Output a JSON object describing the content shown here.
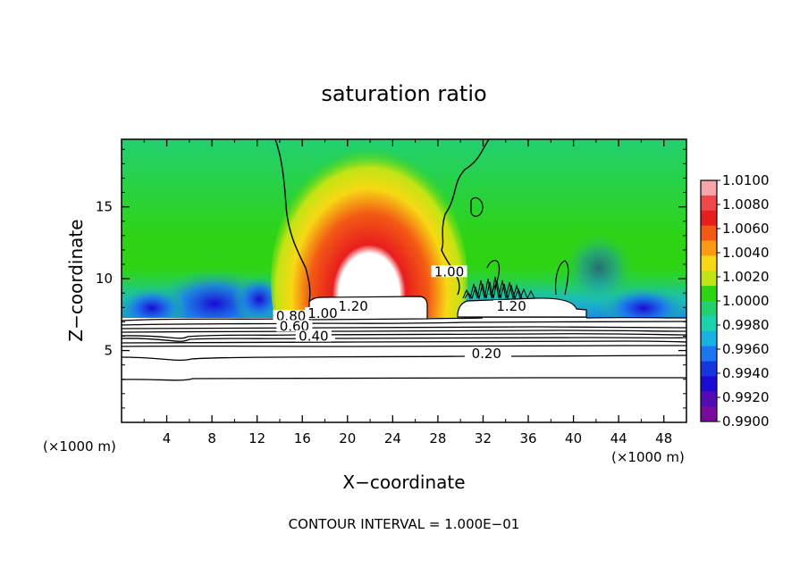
{
  "chart_data": {
    "type": "heatmap",
    "title": "saturation ratio",
    "xlabel": "X−coordinate",
    "ylabel": "Z−coordinate",
    "x_unit_left": "(×1000 m)",
    "x_unit_right": "(×1000 m)",
    "footer": "CONTOUR INTERVAL = 1.000E−01",
    "xlim": [
      0,
      50
    ],
    "ylim": [
      0,
      19.7
    ],
    "x_ticks": [
      4,
      8,
      12,
      16,
      20,
      24,
      28,
      32,
      36,
      40,
      44,
      48
    ],
    "y_ticks": [
      5,
      10,
      15
    ],
    "colorbar": {
      "levels": [
        "1.0100",
        "1.0080",
        "1.0060",
        "1.0040",
        "1.0020",
        "1.0000",
        "0.9980",
        "0.9960",
        "0.9940",
        "0.9920",
        "0.9900"
      ],
      "colors": [
        "#f6a6a6",
        "#f04848",
        "#e81e1e",
        "#f35a14",
        "#fb9a14",
        "#f7d814",
        "#c2e414",
        "#2ed414",
        "#22d070",
        "#1ad2ae",
        "#18b2e2",
        "#1c76f0",
        "#1836e0",
        "#1a0ad4",
        "#540ab4",
        "#780a9e"
      ]
    },
    "contour_labels": [
      {
        "text": "1.20",
        "x": 20.5,
        "z": 7.9
      },
      {
        "text": "1.20",
        "x": 34.5,
        "z": 7.9
      },
      {
        "text": "1.00",
        "x": 17.8,
        "z": 7.4
      },
      {
        "text": "1.00",
        "x": 29.0,
        "z": 10.3
      },
      {
        "text": "0.80",
        "x": 15.0,
        "z": 7.2
      },
      {
        "text": "0.60",
        "x": 15.3,
        "z": 6.5
      },
      {
        "text": "0.40",
        "x": 17.0,
        "z": 5.8
      },
      {
        "text": "0.20",
        "x": 32.3,
        "z": 4.6
      }
    ]
  }
}
